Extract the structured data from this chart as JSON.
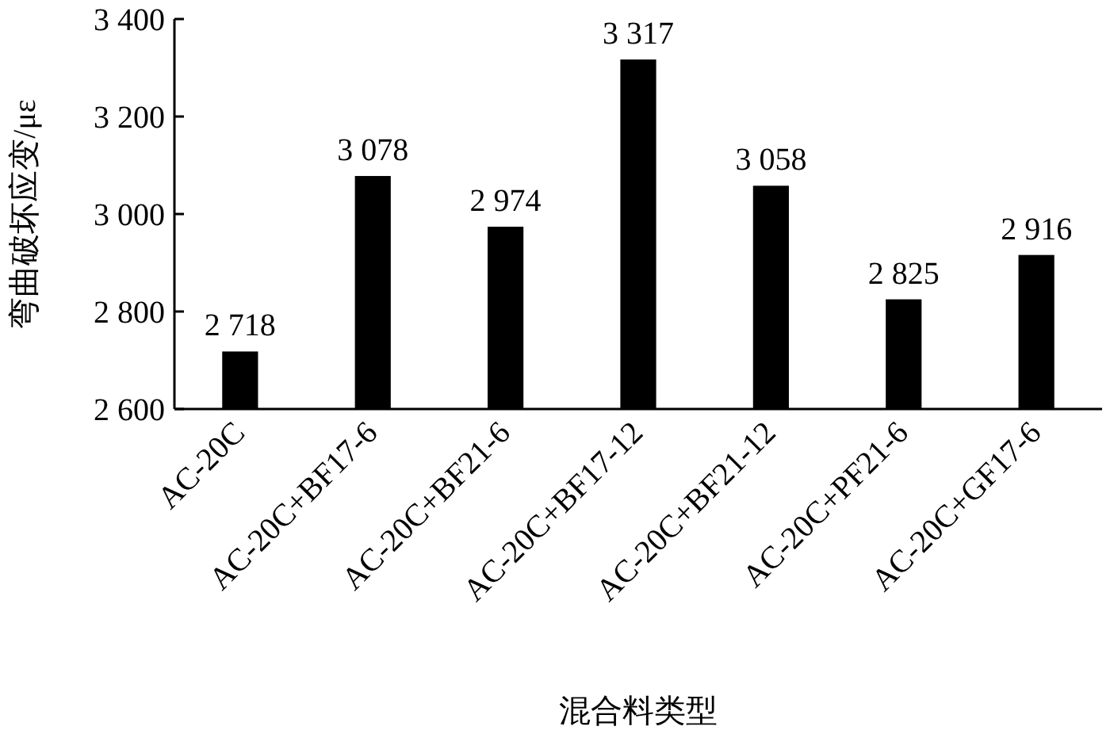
{
  "chart_data": {
    "type": "bar",
    "xlabel": "混合料类型",
    "ylabel": "弯曲破坏应变/με",
    "categories": [
      "AC-20C",
      "AC-20C+BF17-6",
      "AC-20C+BF21-6",
      "AC-20C+BF17-12",
      "AC-20C+BF21-12",
      "AC-20C+PF21-6",
      "AC-20C+GF17-6"
    ],
    "values": [
      2718,
      3078,
      2974,
      3317,
      3058,
      2825,
      2916
    ],
    "value_labels": [
      "2 718",
      "3 078",
      "2 974",
      "3 317",
      "3 058",
      "2 825",
      "2 916"
    ],
    "color": "#000000",
    "ylim": [
      2600,
      3400
    ],
    "yticks": [
      {
        "value": 2600,
        "label": "2 600"
      },
      {
        "value": 2800,
        "label": "2 800"
      },
      {
        "value": 3000,
        "label": "3 000"
      },
      {
        "value": 3200,
        "label": "3 200"
      },
      {
        "value": 3400,
        "label": "3 400"
      }
    ],
    "grid": false
  }
}
